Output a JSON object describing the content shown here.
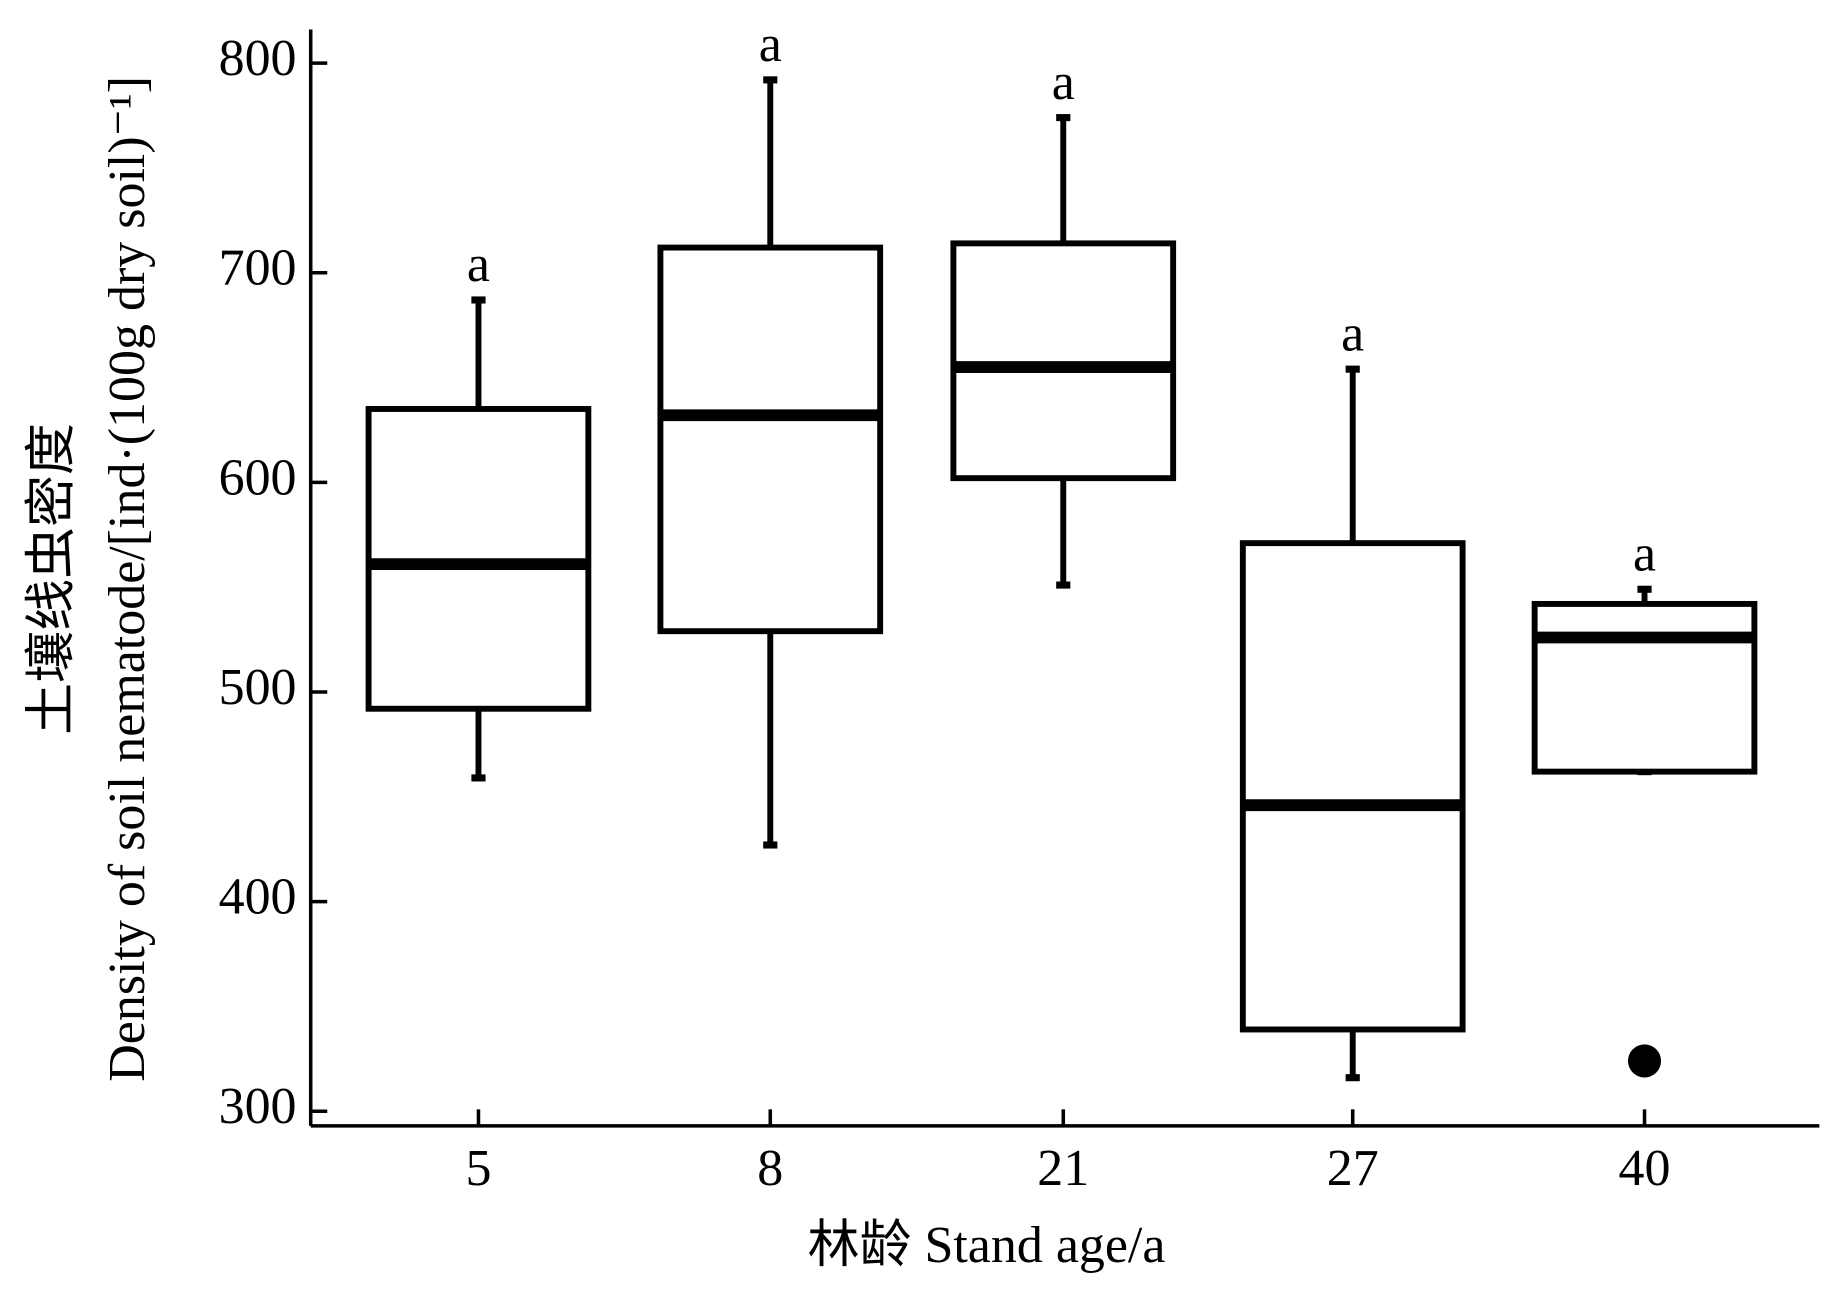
{
  "chart_data": {
    "type": "box",
    "x_label": "林龄  Stand age/a",
    "y_label_zh": "土壤线虫密度",
    "y_label": "Density of soil nematode/[ind·(100g dry soil)⁻¹]",
    "categories": [
      "5",
      "8",
      "21",
      "27",
      "40"
    ],
    "whisker_high": [
      687,
      792,
      774,
      654,
      549
    ],
    "q3": [
      635,
      712,
      714,
      571,
      542
    ],
    "median": [
      561,
      632,
      655,
      446,
      526
    ],
    "q1": [
      492,
      529,
      602,
      339,
      462
    ],
    "whisker_low": [
      459,
      427,
      551,
      316,
      462
    ],
    "outliers": [
      [],
      [],
      [],
      [],
      [
        324
      ]
    ],
    "letters": [
      "a",
      "a",
      "a",
      "a",
      "a"
    ],
    "color": "#000000",
    "ylim": [
      293,
      816
    ],
    "yticks": [
      300,
      400,
      500,
      600,
      700,
      800
    ]
  }
}
